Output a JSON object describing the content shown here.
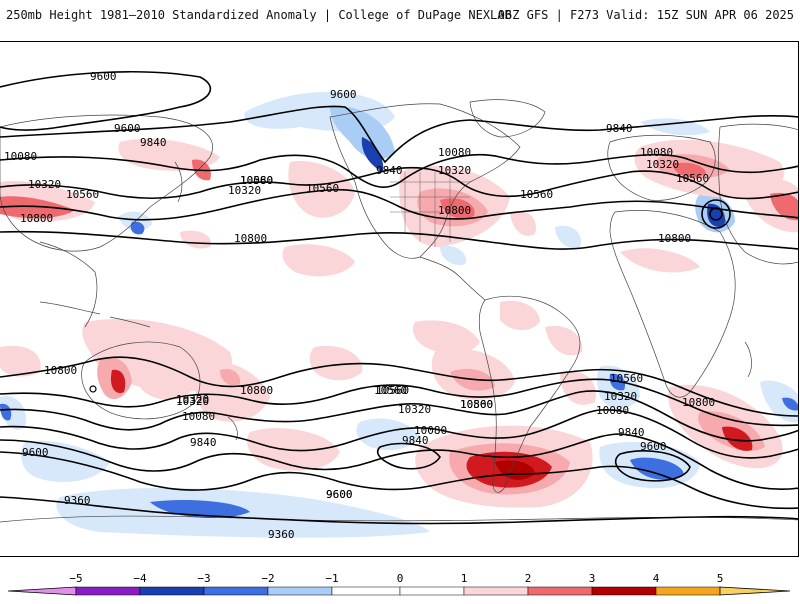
{
  "header": {
    "left_title": "250mb Height 1981–2010 Standardized Anomaly | College of DuPage NEXLAB",
    "right_title": "06Z GFS | F273 Valid: 15Z SUN APR 06 2025"
  },
  "colors": {
    "neg5": "#e090e8",
    "neg4": "#8a1cc4",
    "neg3": "#1a3fb0",
    "neg2": "#3d6fe0",
    "neg1": "#a9cdf5",
    "neg0": "#d7e8fb",
    "pos0": "#fbd6d8",
    "pos1": "#f6aaae",
    "pos2": "#ee6a6e",
    "pos3": "#d01a20",
    "pos4": "#b00000",
    "pos5": "#f7a51c",
    "pos6": "#f7d060",
    "contour": "#000000",
    "coast": "#444444"
  },
  "colorbar": {
    "ticks": [
      "−5",
      "−4",
      "−3",
      "−2",
      "−1",
      "0",
      "1",
      "2",
      "3",
      "4",
      "5"
    ]
  },
  "contour_labels": [
    "9600",
    "9600",
    "9600",
    "9840",
    "9840",
    "10080",
    "10080",
    "10320",
    "10320",
    "10560",
    "10560",
    "10800",
    "10800",
    "10800",
    "10320",
    "10560",
    "10560",
    "10080",
    "10320",
    "10560",
    "10800",
    "9840",
    "10080",
    "10320",
    "10560",
    "10800",
    "10800",
    "10560",
    "10320",
    "10080",
    "9840",
    "9600",
    "9600",
    "9360",
    "9360",
    "10800",
    "10560",
    "10320",
    "10080",
    "9840",
    "9600",
    "10560",
    "10320",
    "10080",
    "9840",
    "9600",
    "10800",
    "10560",
    "10320",
    "10080",
    "9840"
  ]
}
